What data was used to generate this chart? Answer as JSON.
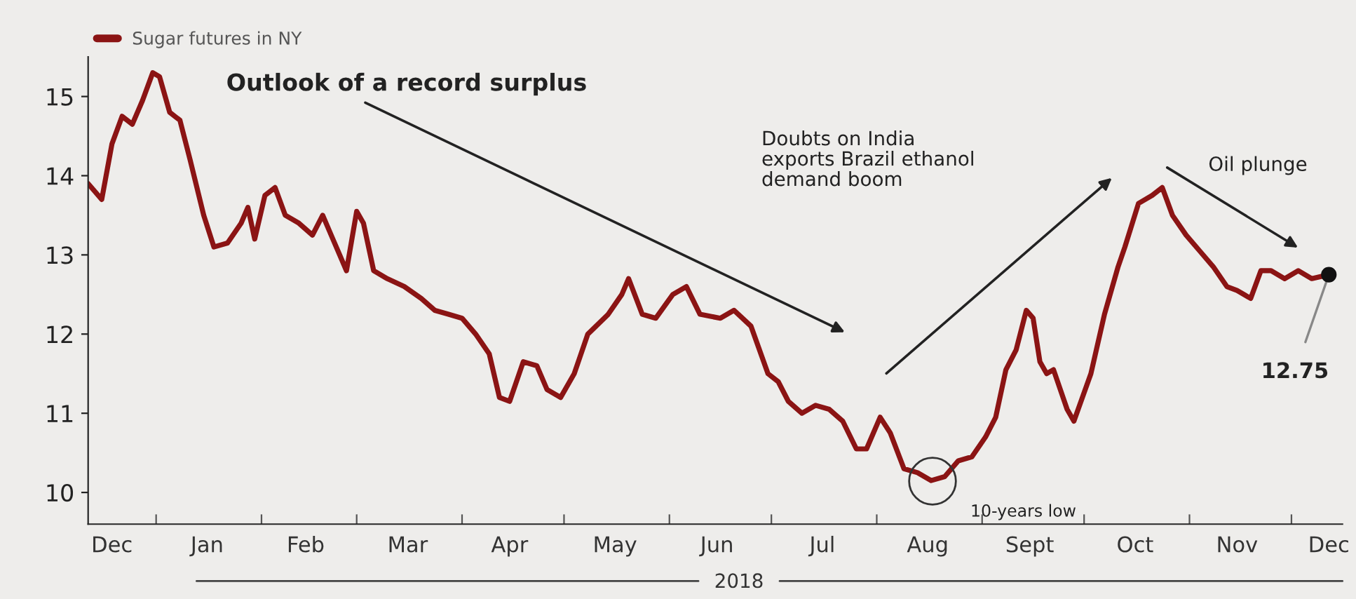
{
  "chart_data": {
    "type": "line",
    "x": [
      "2017-12-12",
      "2017-12-16",
      "2017-12-19",
      "2017-12-22",
      "2017-12-25",
      "2017-12-28",
      "2017-12-31",
      "2018-01-02",
      "2018-01-05",
      "2018-01-08",
      "2018-01-11",
      "2018-01-15",
      "2018-01-18",
      "2018-01-22",
      "2018-01-26",
      "2018-01-28",
      "2018-01-30",
      "2018-02-02",
      "2018-02-05",
      "2018-02-08",
      "2018-02-12",
      "2018-02-16",
      "2018-02-19",
      "2018-02-22",
      "2018-02-26",
      "2018-03-01",
      "2018-03-03",
      "2018-03-06",
      "2018-03-10",
      "2018-03-15",
      "2018-03-20",
      "2018-03-24",
      "2018-03-28",
      "2018-04-01",
      "2018-04-05",
      "2018-04-09",
      "2018-04-12",
      "2018-04-15",
      "2018-04-19",
      "2018-04-23",
      "2018-04-26",
      "2018-04-30",
      "2018-05-04",
      "2018-05-08",
      "2018-05-14",
      "2018-05-18",
      "2018-05-20",
      "2018-05-24",
      "2018-05-28",
      "2018-06-02",
      "2018-06-06",
      "2018-06-10",
      "2018-06-16",
      "2018-06-20",
      "2018-06-25",
      "2018-06-30",
      "2018-07-03",
      "2018-07-06",
      "2018-07-10",
      "2018-07-14",
      "2018-07-18",
      "2018-07-22",
      "2018-07-26",
      "2018-07-29",
      "2018-08-02",
      "2018-08-05",
      "2018-08-09",
      "2018-08-13",
      "2018-08-17",
      "2018-08-21",
      "2018-08-25",
      "2018-08-29",
      "2018-09-02",
      "2018-09-05",
      "2018-09-08",
      "2018-09-11",
      "2018-09-14",
      "2018-09-16",
      "2018-09-18",
      "2018-09-20",
      "2018-09-22",
      "2018-09-26",
      "2018-09-28",
      "2018-10-03",
      "2018-10-07",
      "2018-10-11",
      "2018-10-13",
      "2018-10-17",
      "2018-10-21",
      "2018-10-24",
      "2018-10-27",
      "2018-10-31",
      "2018-11-04",
      "2018-11-08",
      "2018-11-12",
      "2018-11-15",
      "2018-11-19",
      "2018-11-22",
      "2018-11-25",
      "2018-11-29",
      "2018-12-03",
      "2018-12-07",
      "2018-12-12"
    ],
    "series": [
      {
        "name": "Sugar futures in NY",
        "color": "#8b1414",
        "values": [
          13.9,
          13.7,
          14.4,
          14.75,
          14.65,
          14.95,
          15.3,
          15.25,
          14.8,
          14.7,
          14.2,
          13.5,
          13.1,
          13.15,
          13.4,
          13.6,
          13.2,
          13.75,
          13.85,
          13.5,
          13.4,
          13.25,
          13.5,
          13.2,
          12.8,
          13.55,
          13.4,
          12.8,
          12.7,
          12.6,
          12.45,
          12.3,
          12.25,
          12.2,
          12.0,
          11.75,
          11.2,
          11.15,
          11.65,
          11.6,
          11.3,
          11.2,
          11.5,
          12.0,
          12.25,
          12.5,
          12.7,
          12.25,
          12.2,
          12.5,
          12.6,
          12.25,
          12.2,
          12.3,
          12.1,
          11.5,
          11.4,
          11.15,
          11.0,
          11.1,
          11.05,
          10.9,
          10.55,
          10.55,
          10.95,
          10.75,
          10.3,
          10.25,
          10.15,
          10.2,
          10.4,
          10.45,
          10.7,
          10.95,
          11.55,
          11.8,
          12.3,
          12.2,
          11.65,
          11.5,
          11.55,
          11.05,
          10.9,
          11.5,
          12.25,
          12.85,
          13.1,
          13.65,
          13.75,
          13.85,
          13.5,
          13.25,
          13.05,
          12.85,
          12.6,
          12.55,
          12.45,
          12.8,
          12.8,
          12.7,
          12.8,
          12.7,
          12.75
        ]
      }
    ],
    "xlim": [
      "2017-12-12",
      "2018-12-16"
    ],
    "xticks": [
      {
        "value": "2017-12-19",
        "label": "Dec"
      },
      {
        "value": "2018-01-01",
        "label": null
      },
      {
        "value": "2018-01-16",
        "label": "Jan"
      },
      {
        "value": "2018-02-01",
        "label": null
      },
      {
        "value": "2018-02-14",
        "label": "Feb"
      },
      {
        "value": "2018-03-01",
        "label": null
      },
      {
        "value": "2018-03-16",
        "label": "Mar"
      },
      {
        "value": "2018-04-01",
        "label": null
      },
      {
        "value": "2018-04-15",
        "label": "Apr"
      },
      {
        "value": "2018-05-01",
        "label": null
      },
      {
        "value": "2018-05-16",
        "label": "May"
      },
      {
        "value": "2018-06-01",
        "label": null
      },
      {
        "value": "2018-06-15",
        "label": "Jun"
      },
      {
        "value": "2018-07-01",
        "label": null
      },
      {
        "value": "2018-07-16",
        "label": "Jul"
      },
      {
        "value": "2018-08-01",
        "label": null
      },
      {
        "value": "2018-08-16",
        "label": "Aug"
      },
      {
        "value": "2018-09-01",
        "label": null
      },
      {
        "value": "2018-09-15",
        "label": "Sept"
      },
      {
        "value": "2018-10-01",
        "label": null
      },
      {
        "value": "2018-10-16",
        "label": "Oct"
      },
      {
        "value": "2018-11-01",
        "label": null
      },
      {
        "value": "2018-11-15",
        "label": "Nov"
      },
      {
        "value": "2018-12-01",
        "label": null
      },
      {
        "value": "2018-12-12",
        "label": "Dec"
      }
    ],
    "ylim": [
      9.6,
      15.5
    ],
    "yticks": [
      10,
      11,
      12,
      13,
      14,
      15
    ],
    "grid": false,
    "legend": "top left",
    "annotations": [
      "Outlook of a record surplus",
      "Doubts on India\nexports Brazil ethanol\ndemand boom",
      "Oil plunge",
      "10-years low",
      {
        "text": "12.75",
        "x": "2018-12-12",
        "y": 12.75
      },
      "2018"
    ]
  }
}
